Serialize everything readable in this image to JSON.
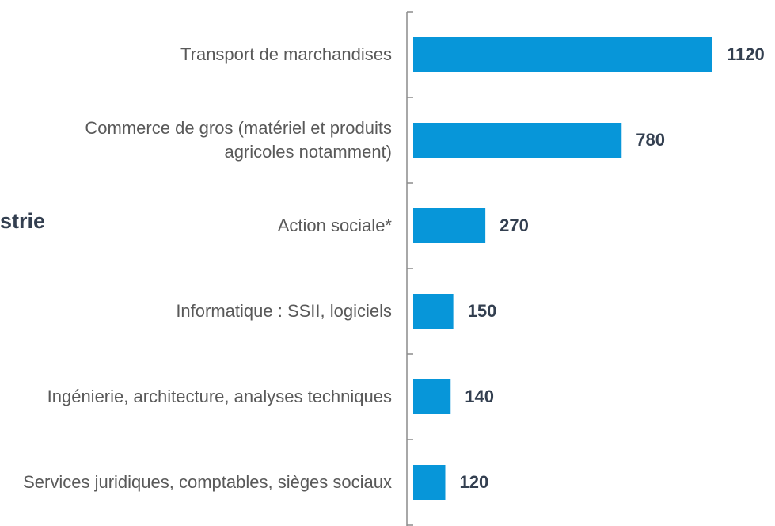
{
  "chart_data": {
    "type": "barh",
    "annotation": "strie",
    "categories": [
      "Transport de marchandises",
      "Commerce de gros (matériel et produits agricoles notamment)",
      "Action sociale*",
      "Informatique : SSII, logiciels",
      "Ingénierie, architecture, analyses techniques",
      "Services juridiques, comptables, sièges sociaux"
    ],
    "values": [
      1120,
      780,
      270,
      150,
      140,
      120
    ],
    "color": "#0796d9"
  }
}
